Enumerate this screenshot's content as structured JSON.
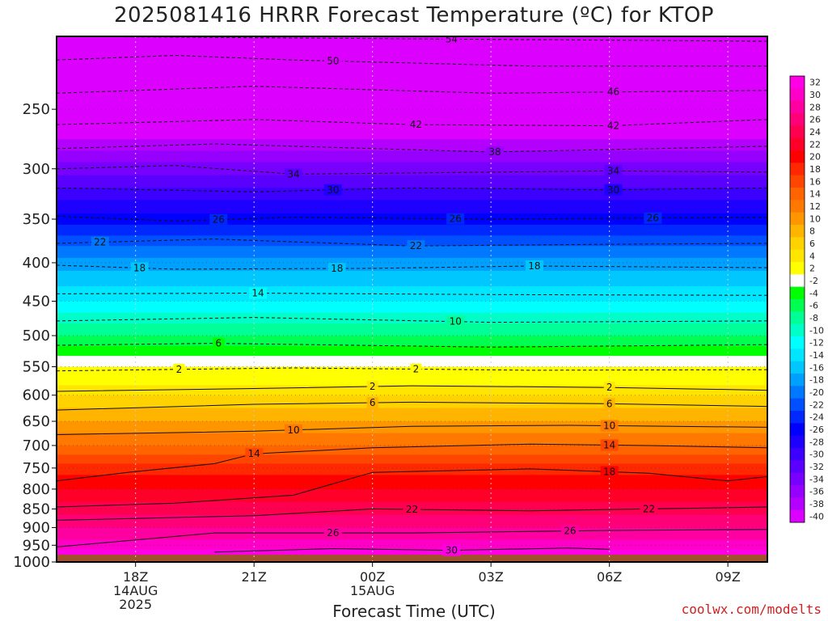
{
  "title": "2025081416 HRRR Forecast Temperature (ºC) for KTOP",
  "xlabel": "Forecast Time (UTC)",
  "credit": "coolwx.com/modelts",
  "colors": {
    "ground": "#a0522d",
    "background": "#ffffff"
  },
  "chart_data": {
    "type": "heatmap",
    "title": "2025081416 HRRR Forecast Temperature (ºC) for KTOP",
    "xlabel": "Forecast Time (UTC)",
    "ylabel": "",
    "y_scale": "log-pressure (hPa), inverted",
    "ylim_hpa": [
      1000,
      200
    ],
    "x_range_hours_utc": [
      "14AUG 16Z",
      "15AUG 10Z"
    ],
    "x_ticks": [
      {
        "hour": 18,
        "label": [
          "18Z",
          "14AUG",
          "2025"
        ]
      },
      {
        "hour": 21,
        "label": [
          "21Z"
        ]
      },
      {
        "hour": 24,
        "label": [
          "00Z",
          "15AUG"
        ]
      },
      {
        "hour": 27,
        "label": [
          "03Z"
        ]
      },
      {
        "hour": 30,
        "label": [
          "06Z"
        ]
      },
      {
        "hour": 33,
        "label": [
          "09Z"
        ]
      }
    ],
    "x_start_hour": 16,
    "x_end_hour": 34,
    "y_ticks": [
      250,
      300,
      350,
      400,
      450,
      500,
      550,
      600,
      650,
      700,
      750,
      800,
      850,
      900,
      950,
      1000
    ],
    "surface_pressure_hpa": 978,
    "colorbar_levels": [
      32,
      30,
      28,
      26,
      24,
      22,
      20,
      18,
      16,
      14,
      12,
      10,
      8,
      6,
      4,
      2,
      -2,
      -4,
      -6,
      -8,
      -10,
      -12,
      -14,
      -16,
      -18,
      -20,
      -22,
      -24,
      -26,
      -28,
      -30,
      -32,
      -34,
      -36,
      -38,
      -40
    ],
    "colorbar_colors": [
      "#ff00e6",
      "#ff00c8",
      "#ff00a0",
      "#ff0078",
      "#ff0050",
      "#ff0028",
      "#ff0000",
      "#ff2800",
      "#ff4600",
      "#ff6400",
      "#ff7800",
      "#ff9600",
      "#ffb400",
      "#ffd200",
      "#ffe600",
      "#ffff00",
      "#ffffff",
      "#00ff00",
      "#00ff50",
      "#00ff96",
      "#00ffc8",
      "#00ffff",
      "#00e6ff",
      "#00c8ff",
      "#00a0ff",
      "#0078ff",
      "#0050ff",
      "#0028ff",
      "#0000ff",
      "#1e00ff",
      "#3c00ff",
      "#5a00ff",
      "#7800ff",
      "#9600ff",
      "#b400ff",
      "#dc00ff"
    ],
    "temperature_profile_mid_period": [
      {
        "p": 200,
        "t": -56
      },
      {
        "p": 250,
        "t": -45
      },
      {
        "p": 300,
        "t": -35
      },
      {
        "p": 350,
        "t": -27
      },
      {
        "p": 400,
        "t": -19
      },
      {
        "p": 450,
        "t": -14
      },
      {
        "p": 500,
        "t": -8
      },
      {
        "p": 550,
        "t": -2
      },
      {
        "p": 600,
        "t": 4
      },
      {
        "p": 650,
        "t": 8
      },
      {
        "p": 700,
        "t": 12
      },
      {
        "p": 750,
        "t": 17
      },
      {
        "p": 800,
        "t": 20
      },
      {
        "p": 850,
        "t": 23
      },
      {
        "p": 900,
        "t": 26
      },
      {
        "p": 950,
        "t": 29
      },
      {
        "p": 975,
        "t": 31
      }
    ],
    "contours": [
      {
        "t": -54,
        "style": "dashed",
        "points": [
          [
            16,
            200
          ],
          [
            34,
            203
          ]
        ],
        "labels": [
          {
            "hour": 26.0,
            "text": "54"
          }
        ]
      },
      {
        "t": -50,
        "style": "dashed",
        "points": [
          [
            16,
            215
          ],
          [
            19,
            212
          ],
          [
            22,
            215
          ],
          [
            28,
            219
          ],
          [
            34,
            219
          ]
        ],
        "labels": [
          {
            "hour": 23.0,
            "text": "50"
          }
        ]
      },
      {
        "t": -46,
        "style": "dashed",
        "points": [
          [
            16,
            238
          ],
          [
            21,
            233
          ],
          [
            27,
            238
          ],
          [
            34,
            236
          ]
        ],
        "labels": [
          {
            "hour": 30.1,
            "text": "46"
          }
        ]
      },
      {
        "t": -42,
        "style": "dashed",
        "points": [
          [
            16,
            262
          ],
          [
            21,
            258
          ],
          [
            25,
            262
          ],
          [
            30,
            263
          ],
          [
            34,
            258
          ]
        ],
        "labels": [
          {
            "hour": 25.1,
            "text": "42"
          },
          {
            "hour": 30.1,
            "text": "42"
          }
        ]
      },
      {
        "t": -38,
        "style": "dashed",
        "points": [
          [
            16,
            282
          ],
          [
            20,
            278
          ],
          [
            27,
            285
          ],
          [
            34,
            280
          ]
        ],
        "labels": [
          {
            "hour": 27.1,
            "text": "38"
          }
        ]
      },
      {
        "t": -34,
        "style": "dashed",
        "points": [
          [
            16,
            300
          ],
          [
            19,
            297
          ],
          [
            22,
            305
          ],
          [
            30,
            302
          ],
          [
            34,
            303
          ]
        ],
        "labels": [
          {
            "hour": 22.0,
            "text": "34"
          },
          {
            "hour": 30.1,
            "text": "34"
          }
        ]
      },
      {
        "t": -30,
        "style": "dashed",
        "points": [
          [
            16,
            318
          ],
          [
            21,
            322
          ],
          [
            25,
            318
          ],
          [
            30,
            320
          ],
          [
            34,
            318
          ]
        ],
        "labels": [
          {
            "hour": 23.0,
            "text": "30"
          },
          {
            "hour": 30.1,
            "text": "30"
          }
        ]
      },
      {
        "t": -26,
        "style": "dashed",
        "points": [
          [
            16,
            347
          ],
          [
            19,
            352
          ],
          [
            22,
            348
          ],
          [
            27,
            350
          ],
          [
            34,
            348
          ]
        ],
        "labels": [
          {
            "hour": 20.1,
            "text": "26"
          },
          {
            "hour": 26.1,
            "text": "26"
          },
          {
            "hour": 31.1,
            "text": "26"
          }
        ]
      },
      {
        "t": -22,
        "style": "dashed",
        "points": [
          [
            16,
            377
          ],
          [
            20,
            372
          ],
          [
            25,
            380
          ],
          [
            30,
            378
          ],
          [
            34,
            377
          ]
        ],
        "labels": [
          {
            "hour": 17.1,
            "text": "22"
          },
          {
            "hour": 25.1,
            "text": "22"
          }
        ]
      },
      {
        "t": -18,
        "style": "dashed",
        "points": [
          [
            16,
            403
          ],
          [
            19,
            408
          ],
          [
            24,
            407
          ],
          [
            28,
            404
          ],
          [
            34,
            406
          ]
        ],
        "labels": [
          {
            "hour": 18.1,
            "text": "18"
          },
          {
            "hour": 23.1,
            "text": "18"
          },
          {
            "hour": 28.1,
            "text": "18"
          }
        ]
      },
      {
        "t": -14,
        "style": "dashed",
        "points": [
          [
            16,
            440
          ],
          [
            21,
            439
          ],
          [
            27,
            441
          ],
          [
            34,
            442
          ]
        ],
        "labels": [
          {
            "hour": 21.1,
            "text": "14"
          }
        ]
      },
      {
        "t": -10,
        "style": "dashed",
        "points": [
          [
            16,
            478
          ],
          [
            21,
            473
          ],
          [
            27,
            480
          ],
          [
            34,
            478
          ]
        ],
        "labels": [
          {
            "hour": 26.1,
            "text": "10"
          }
        ]
      },
      {
        "t": -6,
        "style": "dashed",
        "points": [
          [
            16,
            515
          ],
          [
            20,
            512
          ],
          [
            27,
            518
          ],
          [
            34,
            514
          ]
        ],
        "labels": [
          {
            "hour": 20.1,
            "text": "6"
          }
        ]
      },
      {
        "t": -2,
        "style": "dashed",
        "points": [
          [
            16,
            557
          ],
          [
            22,
            552
          ],
          [
            28,
            556
          ],
          [
            34,
            555
          ]
        ],
        "labels": [
          {
            "hour": 19.1,
            "text": "2"
          },
          {
            "hour": 25.1,
            "text": "2"
          }
        ]
      },
      {
        "t": 2,
        "style": "solid",
        "points": [
          [
            16,
            593
          ],
          [
            21,
            588
          ],
          [
            25,
            583
          ],
          [
            30,
            586
          ],
          [
            34,
            591
          ]
        ],
        "labels": [
          {
            "hour": 24.0,
            "text": "2"
          },
          {
            "hour": 30.0,
            "text": "2"
          }
        ]
      },
      {
        "t": 6,
        "style": "solid",
        "points": [
          [
            16,
            628
          ],
          [
            21,
            617
          ],
          [
            25,
            613
          ],
          [
            30,
            616
          ],
          [
            34,
            621
          ]
        ],
        "labels": [
          {
            "hour": 24.0,
            "text": "6"
          },
          {
            "hour": 30.0,
            "text": "6"
          }
        ]
      },
      {
        "t": 10,
        "style": "solid",
        "points": [
          [
            16,
            677
          ],
          [
            21,
            670
          ],
          [
            25,
            660
          ],
          [
            29,
            658
          ],
          [
            34,
            662
          ]
        ],
        "labels": [
          {
            "hour": 22.0,
            "text": "10"
          },
          {
            "hour": 30.0,
            "text": "10"
          }
        ]
      },
      {
        "t": 14,
        "style": "solid",
        "points": [
          [
            16,
            780
          ],
          [
            17.8,
            760
          ],
          [
            20,
            740
          ],
          [
            21,
            718
          ],
          [
            24,
            705
          ],
          [
            28,
            697
          ],
          [
            31,
            700
          ],
          [
            34,
            705
          ]
        ],
        "labels": [
          {
            "hour": 21.0,
            "text": "14"
          },
          {
            "hour": 30.0,
            "text": "14"
          }
        ]
      },
      {
        "t": 18,
        "style": "solid",
        "points": [
          [
            16,
            845
          ],
          [
            19,
            835
          ],
          [
            22,
            815
          ],
          [
            24,
            760
          ],
          [
            28,
            752
          ],
          [
            31,
            762
          ],
          [
            33,
            780
          ],
          [
            34,
            770
          ]
        ],
        "labels": [
          {
            "hour": 30.0,
            "text": "18"
          }
        ]
      },
      {
        "t": 22,
        "style": "solid",
        "points": [
          [
            16,
            880
          ],
          [
            21,
            868
          ],
          [
            24,
            850
          ],
          [
            28,
            855
          ],
          [
            31,
            850
          ],
          [
            34,
            845
          ]
        ],
        "labels": [
          {
            "hour": 25.0,
            "text": "22"
          },
          {
            "hour": 31.0,
            "text": "22"
          }
        ]
      },
      {
        "t": 26,
        "style": "solid",
        "points": [
          [
            16,
            955
          ],
          [
            20,
            915
          ],
          [
            25,
            915
          ],
          [
            30,
            908
          ],
          [
            34,
            905
          ]
        ],
        "labels": [
          {
            "hour": 23.0,
            "text": "26"
          },
          {
            "hour": 29.0,
            "text": "26"
          }
        ]
      },
      {
        "t": 30,
        "style": "solid",
        "points": [
          [
            20,
            970
          ],
          [
            23,
            960
          ],
          [
            26,
            965
          ],
          [
            29,
            958
          ],
          [
            30,
            962
          ]
        ],
        "labels": [
          {
            "hour": 26.0,
            "text": "30"
          }
        ]
      }
    ]
  }
}
